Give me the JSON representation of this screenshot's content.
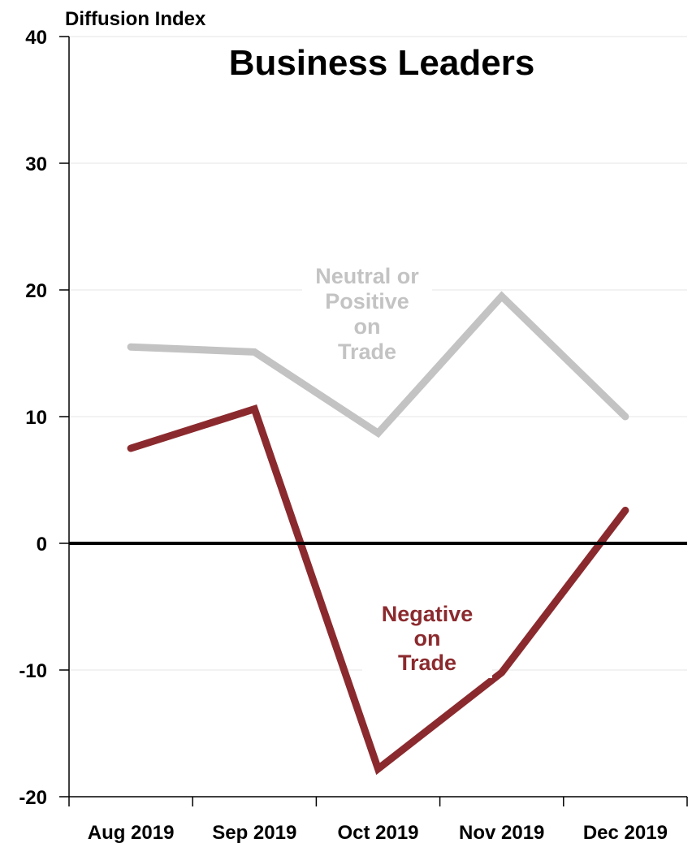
{
  "chart_data": {
    "type": "line",
    "title": "Business Leaders",
    "ylabel": "Diffusion Index",
    "xlabel": "",
    "categories": [
      "Aug 2019",
      "Sep 2019",
      "Oct 2019",
      "Nov 2019",
      "Dec 2019"
    ],
    "ylim": [
      -20,
      40
    ],
    "yticks": [
      -20,
      -10,
      0,
      10,
      20,
      30,
      40
    ],
    "ytick_labels": [
      "-20",
      "-10",
      "0",
      "10",
      "20",
      "30",
      "40"
    ],
    "grid": true,
    "legend": "none",
    "series": [
      {
        "name": "Neutral or Positive on Trade",
        "label_lines": [
          "Neutral or",
          "Positive",
          "on",
          "Trade"
        ],
        "color": "#c3c3c3",
        "values": [
          15.5,
          15.1,
          8.7,
          19.5,
          10.0
        ]
      },
      {
        "name": "Negative on Trade",
        "label_lines": [
          "Negative",
          "on",
          "Trade"
        ],
        "color": "#8b2a2e",
        "values": [
          7.5,
          10.6,
          -17.8,
          -10.2,
          2.6
        ]
      }
    ],
    "zero_line_color": "#000000"
  }
}
